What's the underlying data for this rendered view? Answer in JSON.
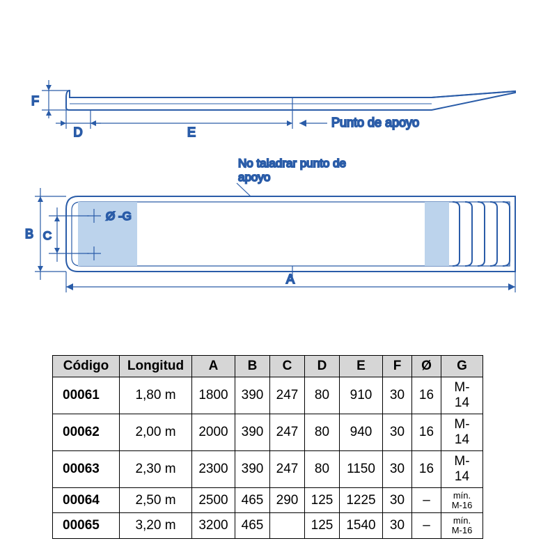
{
  "diagram": {
    "stroke": "#2a5ca8",
    "fillLight": "#bcd3ec",
    "textColor": "#2a5ca8",
    "black": "#000000",
    "labels": {
      "A": "A",
      "B": "B",
      "C": "C",
      "D": "D",
      "E": "E",
      "F": "F",
      "diaG": "Ø -G",
      "punto": "Punto de apoyo",
      "noTaladrar1": "No taladrar punto de",
      "noTaladrar2": "apoyo"
    }
  },
  "table": {
    "headerBg": "#d6d6d6",
    "borderColor": "#000000",
    "columns": [
      "Código",
      "Longitud",
      "A",
      "B",
      "C",
      "D",
      "E",
      "F",
      "Ø",
      "G"
    ],
    "rows": [
      [
        "00061",
        "1,80 m",
        "1800",
        "390",
        "247",
        "80",
        "910",
        "30",
        "16",
        "M-14"
      ],
      [
        "00062",
        "2,00 m",
        "2000",
        "390",
        "247",
        "80",
        "940",
        "30",
        "16",
        "M-14"
      ],
      [
        "00063",
        "2,30 m",
        "2300",
        "390",
        "247",
        "80",
        "1150",
        "30",
        "16",
        "M-14"
      ],
      [
        "00064",
        "2,50 m",
        "2500",
        "465",
        "290",
        "125",
        "1225",
        "30",
        "–",
        "mín. M-16"
      ],
      [
        "00065",
        "3,20 m",
        "3200",
        "465",
        "",
        "125",
        "1540",
        "30",
        "–",
        "mín. M-16"
      ]
    ]
  }
}
